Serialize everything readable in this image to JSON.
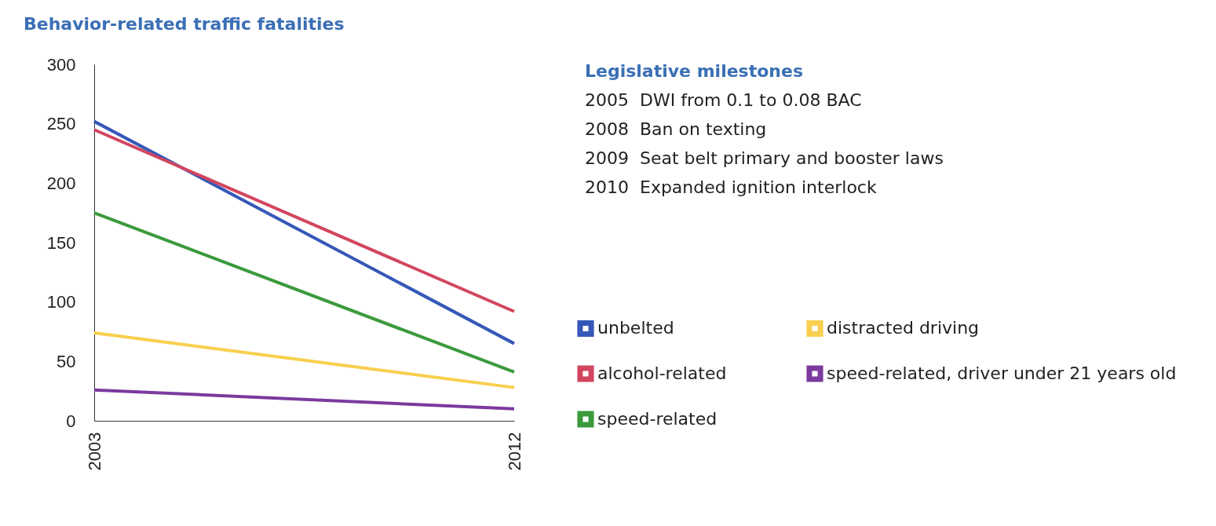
{
  "chart_data": {
    "type": "line",
    "title": "Behavior-related traffic fatalities",
    "categories": [
      "2003",
      "2012"
    ],
    "series": [
      {
        "name": "unbelted",
        "color": "#3558b8",
        "values": [
          252,
          65
        ]
      },
      {
        "name": "alcohol-related",
        "color": "#d2465f",
        "values": [
          245,
          92
        ]
      },
      {
        "name": "speed-related",
        "color": "#3b9a3c",
        "values": [
          175,
          41
        ]
      },
      {
        "name": "distracted driving",
        "color": "#f8cf4e",
        "values": [
          74,
          28
        ]
      },
      {
        "name": "speed-related, driver under 21 years old",
        "color": "#7b3a9e",
        "values": [
          26,
          10
        ]
      }
    ],
    "ylim": [
      0,
      300
    ],
    "yticks": [
      0,
      50,
      100,
      150,
      200,
      250,
      300
    ],
    "grid": false,
    "legend": "right",
    "marker": "none",
    "line_style": "solid",
    "annotations": [
      "Legislative milestones",
      "2005  DWI from 0.1 to 0.08 BAC",
      "2008  Ban on texting",
      "2009  Seat belt primary and booster laws",
      "2010  Expanded ignition interlock"
    ]
  }
}
